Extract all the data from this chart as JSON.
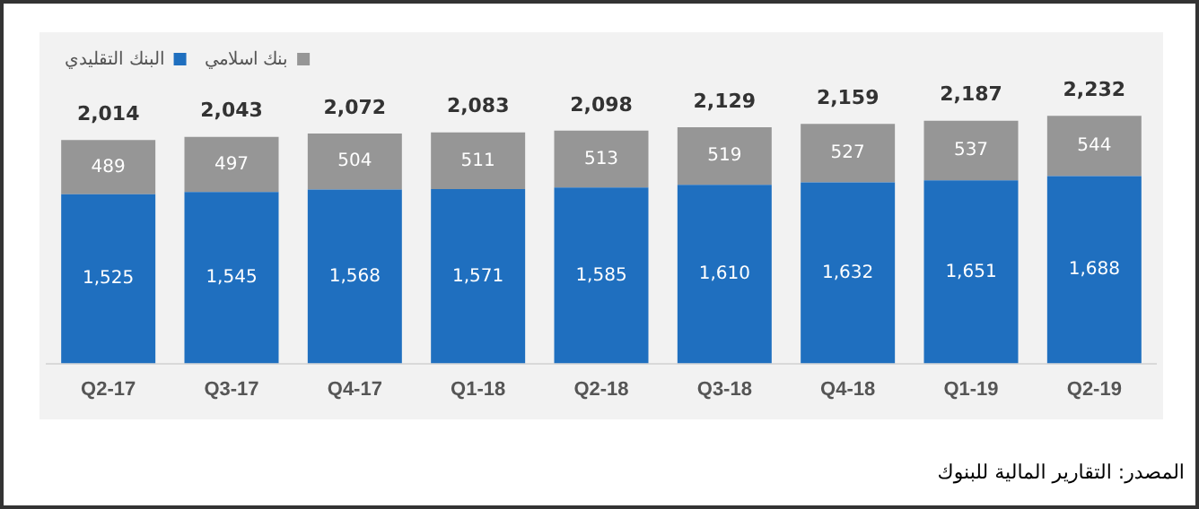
{
  "chart_data": {
    "type": "bar",
    "stacked": true,
    "categories": [
      "Q2-17",
      "Q3-17",
      "Q4-17",
      "Q1-18",
      "Q2-18",
      "Q3-18",
      "Q4-18",
      "Q1-19",
      "Q2-19"
    ],
    "series": [
      {
        "name": "البنك التقليدي",
        "color": "#1f6fbf",
        "values": [
          1525,
          1545,
          1568,
          1571,
          1585,
          1610,
          1632,
          1651,
          1688
        ],
        "value_labels": [
          "1,525",
          "1,545",
          "1,568",
          "1,571",
          "1,585",
          "1,610",
          "1,632",
          "1,651",
          "1,688"
        ]
      },
      {
        "name": "بنك اسلامي",
        "color": "#969696",
        "values": [
          489,
          497,
          504,
          511,
          513,
          519,
          527,
          537,
          544
        ],
        "value_labels": [
          "489",
          "497",
          "504",
          "511",
          "513",
          "519",
          "527",
          "537",
          "544"
        ]
      }
    ],
    "totals": [
      "2,014",
      "2,043",
      "2,072",
      "2,083",
      "2,098",
      "2,129",
      "2,159",
      "2,187",
      "2,232"
    ],
    "legend": "top left",
    "grid": false,
    "annotations": [
      "المصدر: التقارير المالية للبنوك"
    ]
  }
}
